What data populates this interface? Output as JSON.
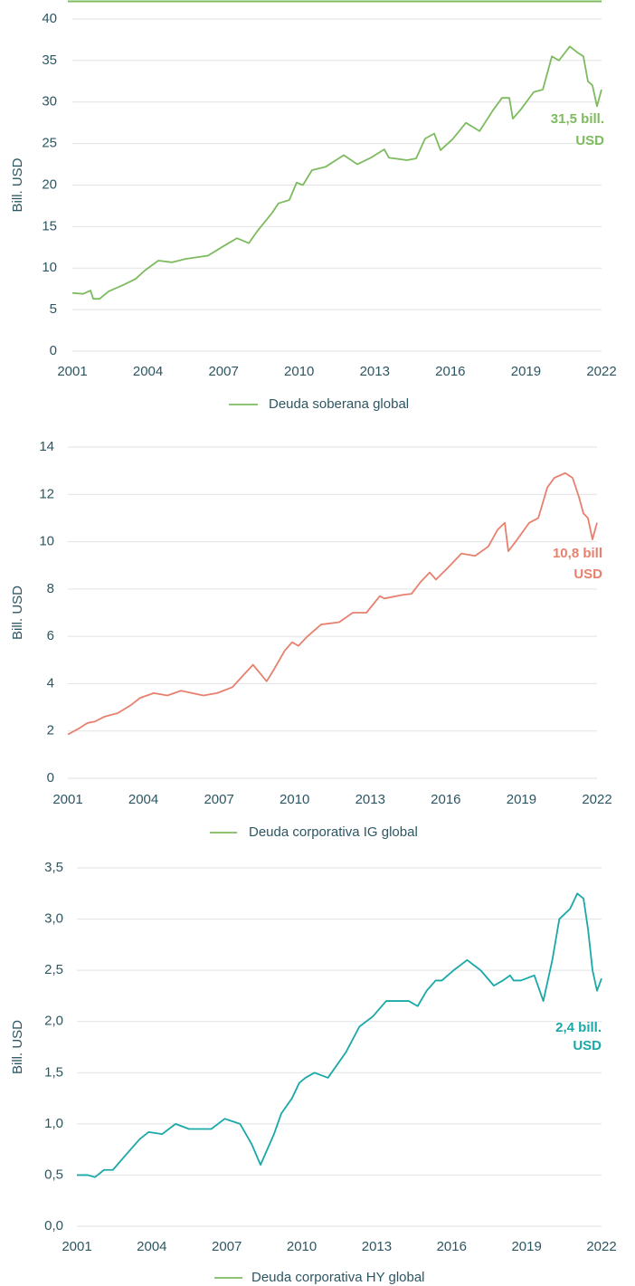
{
  "chart_data": [
    {
      "type": "line",
      "y_label": "Bill. USD",
      "annotation": [
        "31,5 bill.",
        "USD"
      ],
      "legend_color": "#7dbb5f",
      "grid": true,
      "xlim": [
        2001,
        2022
      ],
      "xticks": [
        2001,
        2004,
        2007,
        2010,
        2013,
        2016,
        2019,
        2022
      ],
      "ylim": [
        0,
        40
      ],
      "yticks": [
        0,
        5,
        10,
        15,
        20,
        25,
        30,
        35,
        40
      ],
      "x": [
        2001,
        2001.43,
        2001.72,
        2001.83,
        2002.08,
        2002.44,
        2002.97,
        2003.51,
        2003.87,
        2004.41,
        2004.95,
        2005.49,
        2006.38,
        2006.92,
        2007.53,
        2008.0,
        2008.35,
        2008.89,
        2009.18,
        2009.61,
        2009.9,
        2010.15,
        2010.51,
        2011.05,
        2011.77,
        2012.31,
        2012.85,
        2013.38,
        2013.56,
        2014.28,
        2014.64,
        2015.0,
        2015.36,
        2015.61,
        2016.08,
        2016.62,
        2017.16,
        2017.69,
        2018.05,
        2018.34,
        2018.48,
        2018.77,
        2019.31,
        2019.67,
        2020.03,
        2020.31,
        2020.74,
        2021.03,
        2021.28,
        2021.46,
        2021.64,
        2021.82,
        2022
      ],
      "series": [
        {
          "name": "Deuda soberana global",
          "color": "#7dbb5f",
          "values": [
            7,
            6.9,
            7.3,
            6.3,
            6.3,
            7.2,
            7.9,
            8.7,
            9.7,
            10.9,
            10.7,
            11.1,
            11.5,
            12.5,
            13.6,
            13,
            14.5,
            16.5,
            17.8,
            18.2,
            20.3,
            20,
            21.8,
            22.2,
            23.6,
            22.5,
            23.3,
            24.3,
            23.3,
            23,
            23.2,
            25.6,
            26.2,
            24.2,
            25.5,
            27.5,
            26.5,
            29,
            30.5,
            30.5,
            28,
            29,
            31.2,
            31.5,
            35.5,
            35,
            36.7,
            36,
            35.5,
            32.5,
            32,
            29.5,
            31.5
          ]
        }
      ]
    },
    {
      "type": "line",
      "y_label": "Bill. USD",
      "annotation": [
        "10,8 bill",
        "USD"
      ],
      "legend_color": "#7dbb5f",
      "grid": true,
      "xlim": [
        2001,
        2022
      ],
      "xticks": [
        2001,
        2004,
        2007,
        2010,
        2013,
        2016,
        2019,
        2022
      ],
      "ylim": [
        0,
        14
      ],
      "yticks": [
        0,
        2,
        4,
        6,
        8,
        10,
        12,
        14
      ],
      "x": [
        2001,
        2001.43,
        2001.72,
        2001.83,
        2002.08,
        2002.44,
        2002.97,
        2003.51,
        2003.87,
        2004.41,
        2004.95,
        2005.49,
        2006.38,
        2006.92,
        2007.53,
        2008.0,
        2008.35,
        2008.89,
        2009.18,
        2009.61,
        2009.9,
        2010.15,
        2010.51,
        2011.05,
        2011.77,
        2012.31,
        2012.85,
        2013.38,
        2013.56,
        2014.28,
        2014.64,
        2015.0,
        2015.36,
        2015.61,
        2016.08,
        2016.62,
        2017.16,
        2017.69,
        2018.05,
        2018.34,
        2018.48,
        2018.77,
        2019.31,
        2019.67,
        2020.03,
        2020.31,
        2020.74,
        2021.03,
        2021.28,
        2021.46,
        2021.64,
        2021.82,
        2022
      ],
      "series": [
        {
          "name": "Deuda corporativa IG global",
          "color": "#e8806e",
          "values": [
            1.85,
            2.1,
            2.3,
            2.35,
            2.4,
            2.6,
            2.75,
            3.1,
            3.4,
            3.6,
            3.5,
            3.7,
            3.5,
            3.6,
            3.85,
            4.4,
            4.8,
            4.1,
            4.6,
            5.4,
            5.75,
            5.6,
            6.0,
            6.5,
            6.6,
            7.0,
            7.0,
            7.7,
            7.6,
            7.75,
            7.8,
            8.3,
            8.7,
            8.4,
            8.9,
            9.5,
            9.4,
            9.8,
            10.5,
            10.8,
            9.6,
            10.0,
            10.8,
            11.0,
            12.3,
            12.7,
            12.9,
            12.7,
            11.9,
            11.2,
            11.0,
            10.1,
            10.8
          ]
        }
      ]
    },
    {
      "type": "line",
      "y_label": "Bill. USD",
      "annotation": [
        "2,4 bill.",
        "USD"
      ],
      "legend_color": "#7dbb5f",
      "grid": true,
      "xlim": [
        2001,
        2022
      ],
      "xticks": [
        2001,
        2004,
        2007,
        2010,
        2013,
        2016,
        2019,
        2022
      ],
      "ylim": [
        0,
        3.5
      ],
      "yticks": [
        {
          "value": 0,
          "label": "0,0"
        },
        {
          "value": 0.5,
          "label": "0,5"
        },
        {
          "value": 1,
          "label": "1,0"
        },
        {
          "value": 1.5,
          "label": "1,5"
        },
        {
          "value": 2,
          "label": "2,0"
        },
        {
          "value": 2.5,
          "label": "2,5"
        },
        {
          "value": 3,
          "label": "3,0"
        },
        {
          "value": 3.5,
          "label": "3,5"
        }
      ],
      "x": [
        2001,
        2001.43,
        2001.72,
        2001.83,
        2002.08,
        2002.44,
        2002.97,
        2003.51,
        2003.87,
        2004.41,
        2004.95,
        2005.49,
        2006.38,
        2006.92,
        2007.53,
        2008.0,
        2008.35,
        2008.89,
        2009.18,
        2009.61,
        2009.9,
        2010.15,
        2010.51,
        2011.05,
        2011.77,
        2012.31,
        2012.85,
        2013.38,
        2013.56,
        2014.28,
        2014.64,
        2015.0,
        2015.36,
        2015.61,
        2016.08,
        2016.62,
        2017.16,
        2017.69,
        2018.05,
        2018.34,
        2018.48,
        2018.77,
        2019.31,
        2019.67,
        2020.03,
        2020.31,
        2020.74,
        2021.03,
        2021.28,
        2021.46,
        2021.64,
        2021.82,
        2022
      ],
      "series": [
        {
          "name": "Deuda corporativa HY global",
          "color": "#1aa8a8",
          "values": [
            0.5,
            0.5,
            0.48,
            0.5,
            0.55,
            0.55,
            0.7,
            0.85,
            0.92,
            0.9,
            1.0,
            0.95,
            0.95,
            1.05,
            1.0,
            0.8,
            0.6,
            0.9,
            1.1,
            1.25,
            1.4,
            1.45,
            1.5,
            1.45,
            1.7,
            1.95,
            2.05,
            2.2,
            2.2,
            2.2,
            2.15,
            2.3,
            2.4,
            2.4,
            2.5,
            2.6,
            2.5,
            2.35,
            2.4,
            2.45,
            2.4,
            2.4,
            2.45,
            2.2,
            2.6,
            3.0,
            3.1,
            3.25,
            3.2,
            2.9,
            2.5,
            2.3,
            2.42
          ]
        }
      ]
    }
  ]
}
